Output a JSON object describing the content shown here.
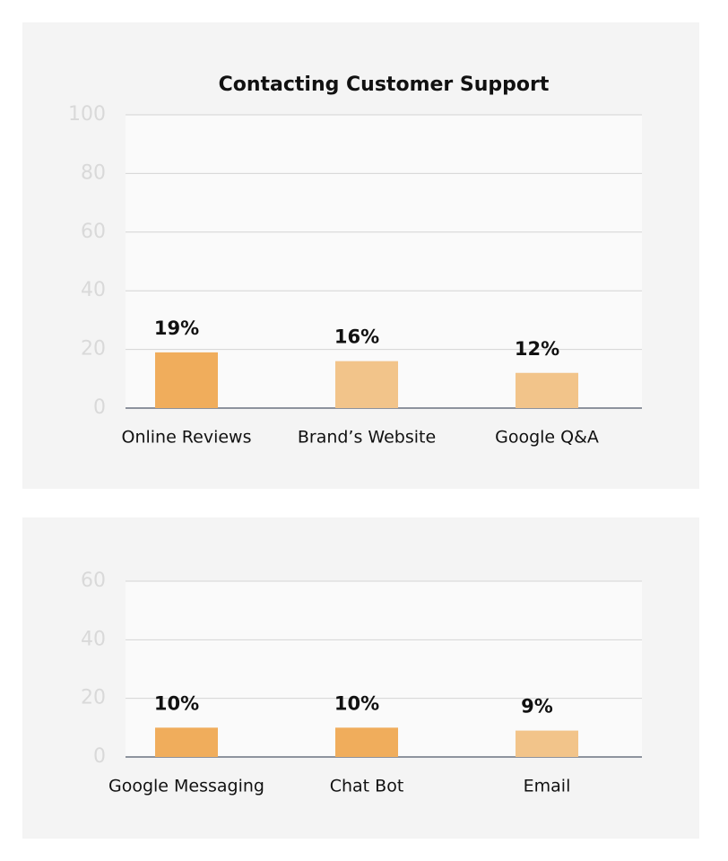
{
  "chart_data": [
    {
      "type": "bar",
      "title": "Contacting Customer Support",
      "categories": [
        "Online Reviews",
        "Brand’s Website",
        "Google Q&A"
      ],
      "values": [
        19,
        16,
        12
      ],
      "value_labels": [
        "19%",
        "16%",
        "12%"
      ],
      "colors": [
        "#f0ad5c",
        "#f2c48a",
        "#f2c48a"
      ],
      "ylim": [
        0,
        100
      ],
      "yticks": [
        0,
        20,
        40,
        60,
        80,
        100
      ],
      "grid": true
    },
    {
      "type": "bar",
      "categories": [
        "Google Messaging",
        "Chat Bot",
        "Email"
      ],
      "values": [
        10,
        10,
        9
      ],
      "value_labels": [
        "10%",
        "10%",
        "9%"
      ],
      "colors": [
        "#f0ad5c",
        "#f0ad5c",
        "#f2c48a"
      ],
      "ylim": [
        0,
        60
      ],
      "yticks": [
        0,
        20,
        40,
        60
      ],
      "grid": true
    }
  ]
}
